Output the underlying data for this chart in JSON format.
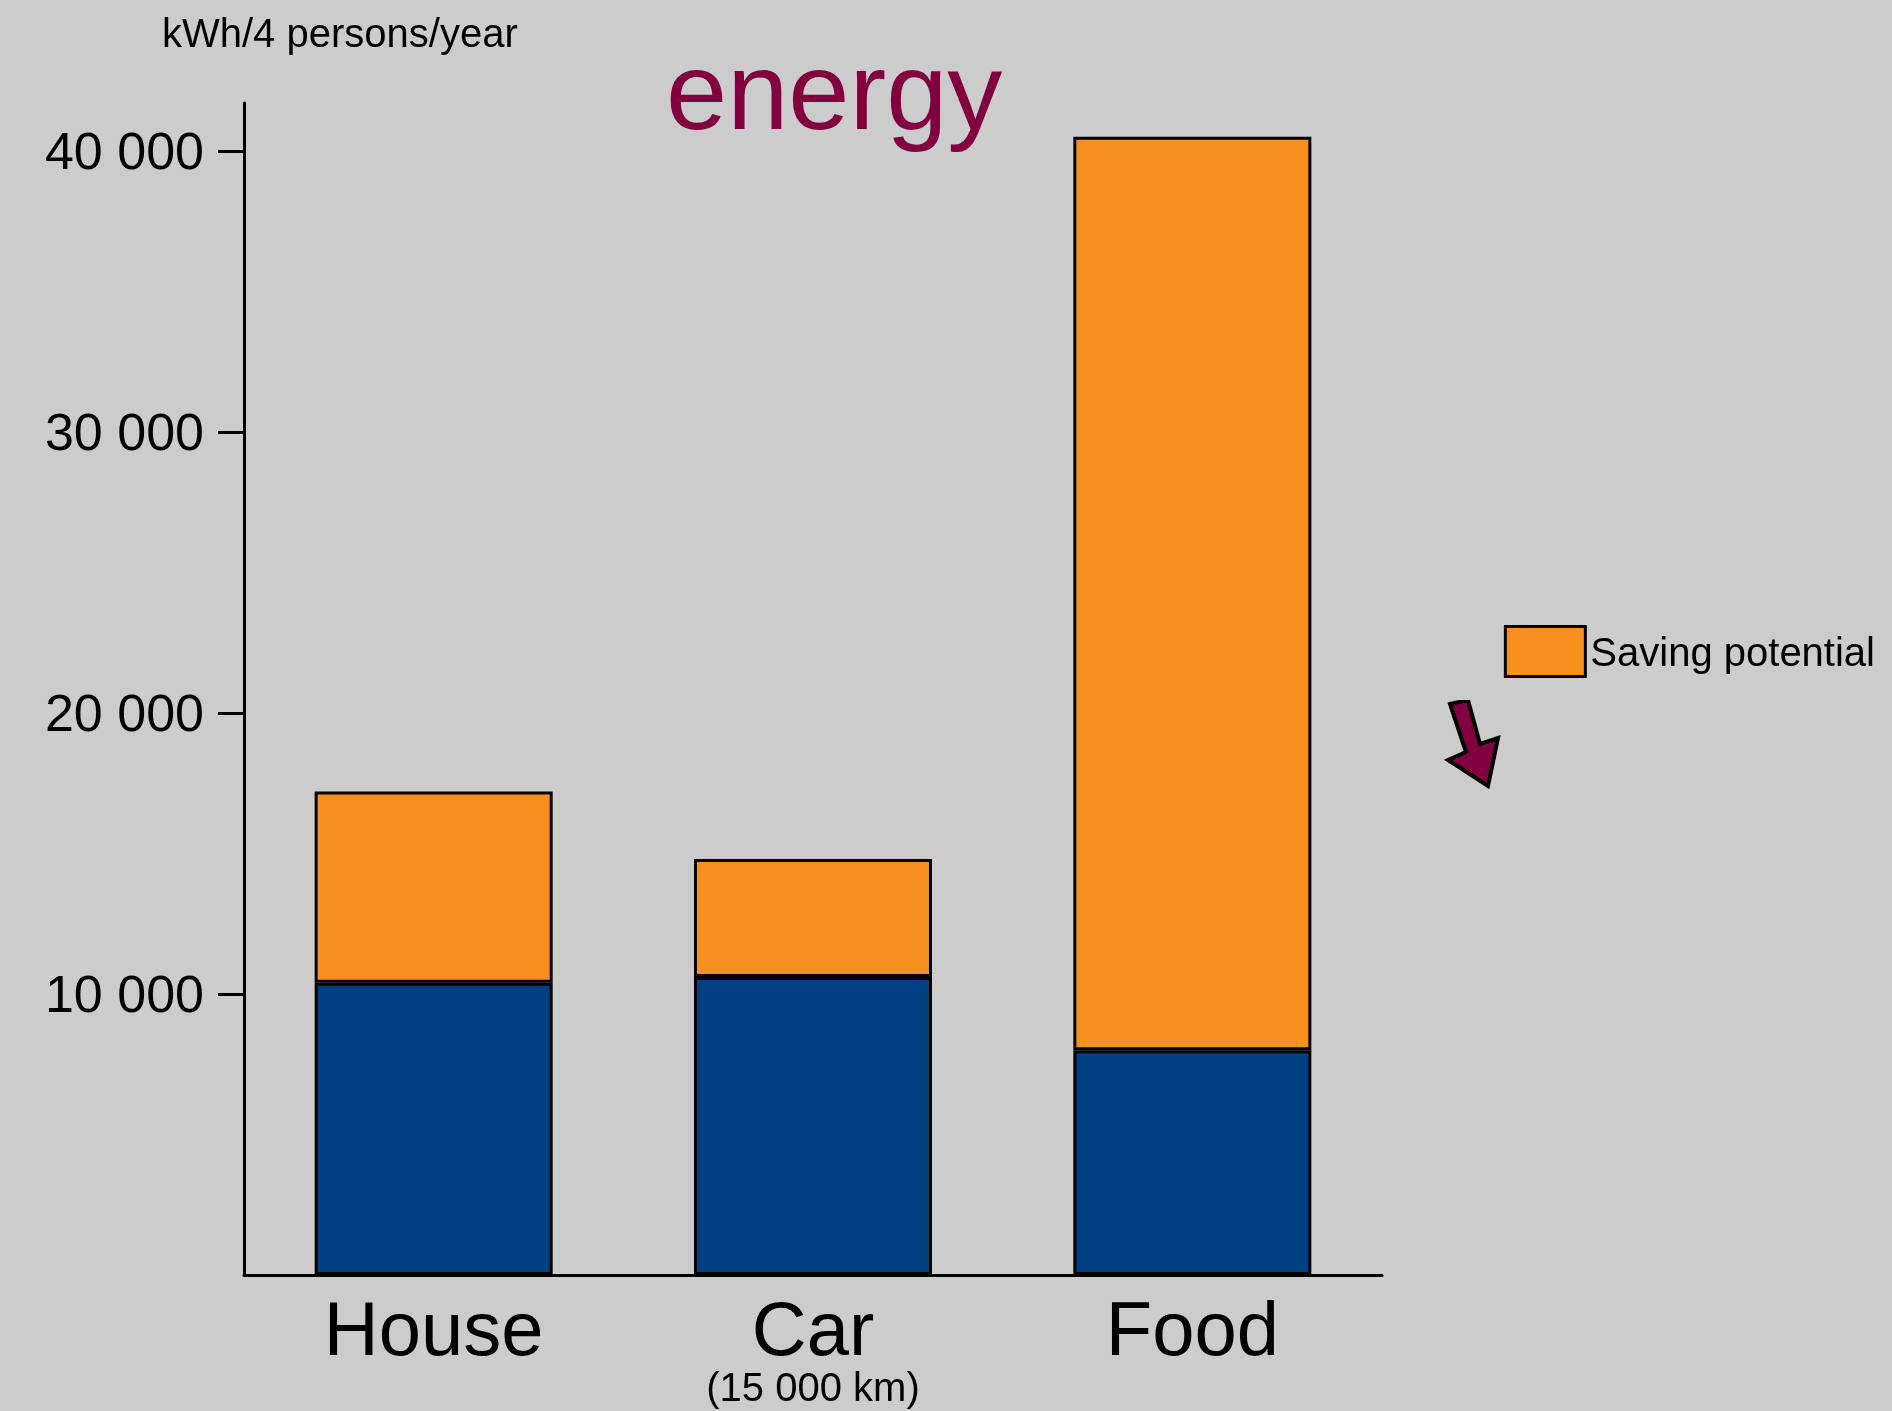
{
  "chart_data": {
    "type": "bar",
    "title": "energy",
    "ylabel": "kWh/4 persons/year",
    "categories": [
      "House",
      "Car\n(15 000 km)",
      "Food"
    ],
    "stacked": true,
    "series": [
      {
        "color": "#003f80",
        "values": [
          10400,
          10600,
          8000
        ]
      },
      {
        "name": "Saving potential",
        "color": "#f7901e",
        "values": [
          6800,
          4200,
          32500
        ]
      }
    ],
    "ylim": [
      0,
      41700
    ],
    "yticks": [
      {
        "value": 10000,
        "label": "10 000"
      },
      {
        "value": 20000,
        "label": "20 000"
      },
      {
        "value": 30000,
        "label": "30 000"
      },
      {
        "value": 40000,
        "label": "40 000"
      }
    ],
    "grid": false,
    "legend": "right"
  }
}
